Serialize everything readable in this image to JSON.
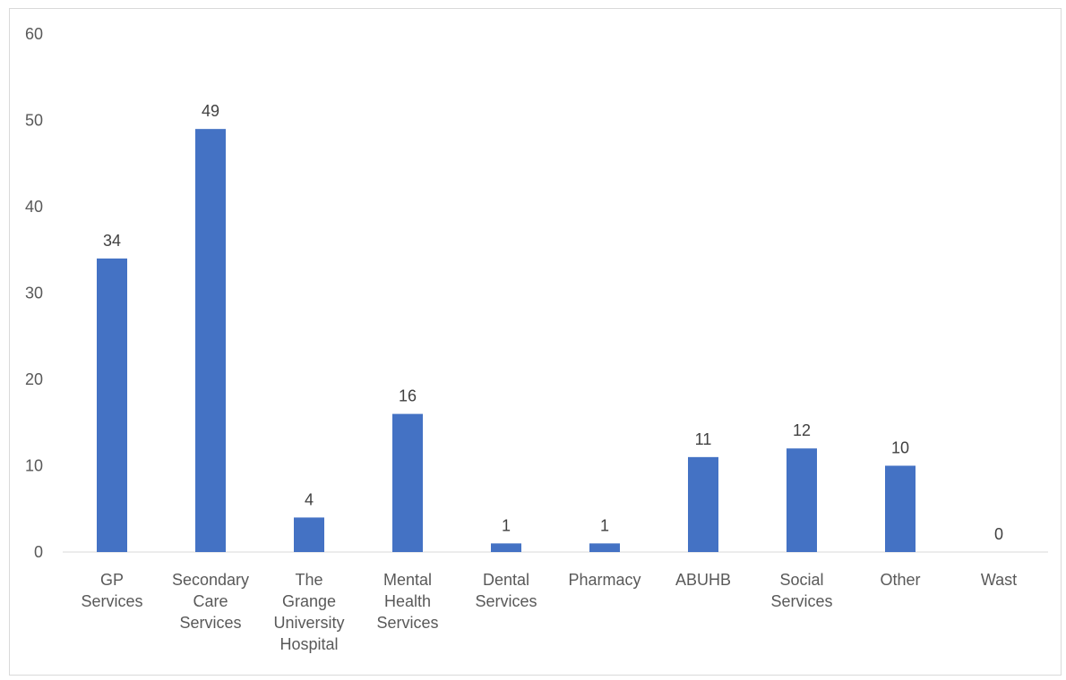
{
  "chart_data": {
    "type": "bar",
    "title": "",
    "xlabel": "",
    "ylabel": "",
    "ylim": [
      0,
      60
    ],
    "yticks": [
      0,
      10,
      20,
      30,
      40,
      50,
      60
    ],
    "grid": false,
    "legend": "none",
    "categories": [
      "GP Services",
      "Secondary Care Services",
      "The Grange University Hospital",
      "Mental Health Services",
      "Dental Services",
      "Pharmacy",
      "ABUHB",
      "Social Services",
      "Other",
      "Wast"
    ],
    "category_lines": [
      [
        "GP",
        "Services"
      ],
      [
        "Secondary",
        "Care",
        "Services"
      ],
      [
        "The",
        "Grange",
        "University",
        "Hospital"
      ],
      [
        "Mental",
        "Health",
        "Services"
      ],
      [
        "Dental",
        "Services"
      ],
      [
        "Pharmacy"
      ],
      [
        "ABUHB"
      ],
      [
        "Social",
        "Services"
      ],
      [
        "Other"
      ],
      [
        "Wast"
      ]
    ],
    "values": [
      34,
      49,
      4,
      16,
      1,
      1,
      11,
      12,
      10,
      0
    ],
    "data_labels": true,
    "bar_color": "#4472c4",
    "axis_color": "#d9d9d9"
  }
}
